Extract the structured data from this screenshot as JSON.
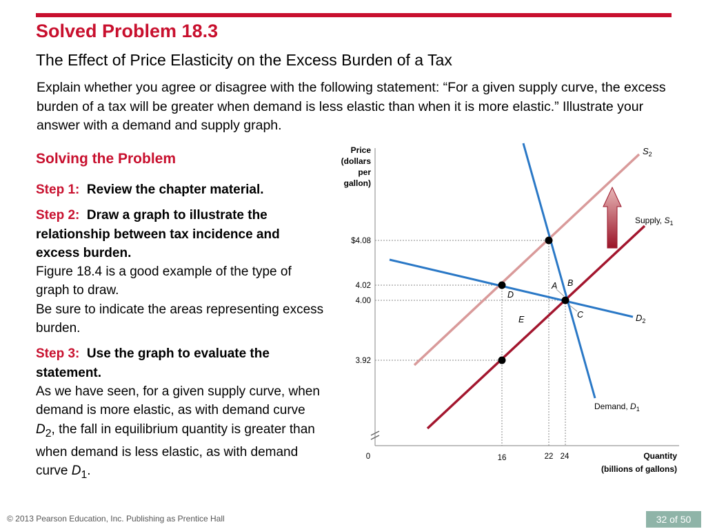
{
  "slide": {
    "title": "Solved Problem  18.3",
    "subtitle": "The Effect of Price Elasticity on the Excess Burden of a Tax",
    "question": "Explain whether you agree or disagree with the following statement: “For a given supply curve, the excess burden of a tax will be greater when demand is less elastic than when it is more elastic.” Illustrate your answer with a demand and supply graph.",
    "solving_heading": "Solving the Problem",
    "step1": {
      "label": "Step 1:",
      "title": "Review the chapter material."
    },
    "step2": {
      "label": "Step 2:",
      "title": "Draw a graph to illustrate the relationship between tax incidence and excess burden.",
      "line1": "Figure 18.4 is a good example of the type of graph to draw.",
      "line2": "Be sure to indicate the areas representing excess burden."
    },
    "step3": {
      "label": "Step 3:",
      "title": "Use the graph to evaluate the statement.",
      "body_a": "As we have seen, for a given supply curve, when demand is more elastic, as with demand curve ",
      "d2_letter": "D",
      "d2_sub": "2",
      "body_b": ", the fall in equilibrium quantity is greater than when demand is less elastic, as with demand curve ",
      "d1_letter": "D",
      "d1_sub": "1",
      "body_c": "."
    },
    "footer": "© 2013 Pearson Education, Inc. Publishing as Prentice Hall",
    "page": "32 of 50"
  },
  "graph": {
    "y_axis_label": [
      "Price",
      "(dollars",
      "per",
      "gallon)"
    ],
    "x_axis_label": [
      "Quantity",
      "(billions of gallons)"
    ],
    "origin_label": "0",
    "y_ticks": [
      "$4.08",
      "4.02",
      "4.00",
      "3.92"
    ],
    "x_ticks": [
      "16",
      "22",
      "24"
    ],
    "labels": {
      "s2": "S",
      "s2_sub": "2",
      "supply": "Supply, ",
      "supply_s": "S",
      "supply_sub": "1",
      "demand": "Demand, ",
      "demand_d": "D",
      "demand_sub": "1",
      "d2": "D",
      "d2_sub": "2",
      "A": "A",
      "B": "B",
      "C": "C",
      "D": "D",
      "E": "E"
    },
    "colors": {
      "supply": "#a3162e",
      "supply_shifted": "#d99a9a",
      "demand": "#2a78c6",
      "arrow": "#a3162e",
      "accent": "#c8102e"
    }
  }
}
